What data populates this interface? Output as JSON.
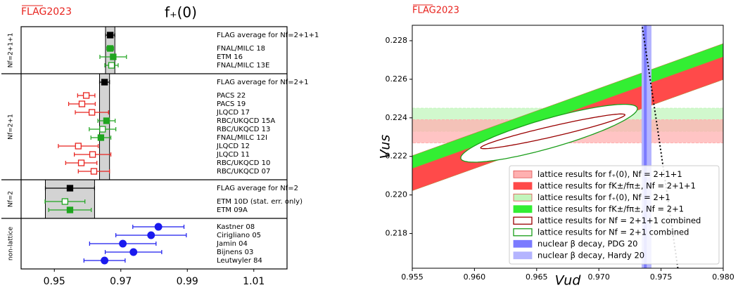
{
  "chart_data": [
    {
      "type": "forest",
      "logo": "FLAG2023",
      "title": "f₊(0)",
      "xlim": [
        0.94,
        1.02
      ],
      "xticks": [
        0.95,
        0.97,
        0.99,
        1.01
      ],
      "groups": [
        {
          "name": "Nf=2+1+1",
          "marker": "square",
          "average_band": true,
          "entries": [
            {
              "label": "FLAG average for Nf=2+1+1",
              "value": 0.9668,
              "error": 0.0014,
              "color": "#000000",
              "filled": true
            },
            {
              "label": "FNAL/MILC 18",
              "value": 0.9668,
              "error": 0.001,
              "color": "#1fa51f",
              "filled": true
            },
            {
              "label": "ETM 16",
              "value": 0.9677,
              "error": 0.004,
              "color": "#1fa51f",
              "filled": true
            },
            {
              "label": "FNAL/MILC 13E",
              "value": 0.9672,
              "error": 0.002,
              "color": "#1fa51f",
              "filled": false
            }
          ]
        },
        {
          "name": "Nf=2+1",
          "marker": "square",
          "average_band": true,
          "entries": [
            {
              "label": "FLAG average for Nf=2+1",
              "value": 0.9651,
              "error": 0.0015,
              "color": "#000000",
              "filled": true
            },
            {
              "label": "PACS 22",
              "value": 0.9596,
              "error": 0.0026,
              "color": "#e8231e",
              "filled": false
            },
            {
              "label": "PACS 19",
              "value": 0.9583,
              "error": 0.004,
              "color": "#e8231e",
              "filled": false
            },
            {
              "label": "JLQCD 17",
              "value": 0.9613,
              "error": 0.005,
              "color": "#e8231e",
              "filled": false
            },
            {
              "label": "RBC/UKQCD 15A",
              "value": 0.9657,
              "error": 0.0026,
              "color": "#1fa51f",
              "filled": true
            },
            {
              "label": "RBC/UKQCD 13",
              "value": 0.9645,
              "error": 0.004,
              "color": "#1fa51f",
              "filled": false
            },
            {
              "label": "FNAL/MILC 12I",
              "value": 0.964,
              "error": 0.003,
              "color": "#1fa51f",
              "filled": true
            },
            {
              "label": "JLQCD 12",
              "value": 0.9572,
              "error": 0.006,
              "color": "#e8231e",
              "filled": false
            },
            {
              "label": "JLQCD 11",
              "value": 0.9615,
              "error": 0.0055,
              "color": "#e8231e",
              "filled": false
            },
            {
              "label": "RBC/UKQCD 10",
              "value": 0.9581,
              "error": 0.0047,
              "color": "#e8231e",
              "filled": false
            },
            {
              "label": "RBC/UKQCD 07",
              "value": 0.9619,
              "error": 0.0047,
              "color": "#e8231e",
              "filled": false
            }
          ]
        },
        {
          "name": "Nf=2",
          "marker": "square",
          "average_band": true,
          "entries": [
            {
              "label": "FLAG average for Nf=2",
              "value": 0.9547,
              "error": 0.0074,
              "color": "#000000",
              "filled": true
            },
            {
              "label": "ETM 10D (stat. err. only)",
              "value": 0.9532,
              "error": 0.006,
              "color": "#1fa51f",
              "filled": false
            },
            {
              "label": "ETM 09A",
              "value": 0.9547,
              "error": 0.0064,
              "color": "#1fa51f",
              "filled": true
            }
          ]
        },
        {
          "name": "non-lattice",
          "marker": "circle",
          "average_band": false,
          "entries": [
            {
              "label": "Kastner 08",
              "value": 0.9813,
              "error": 0.0077,
              "color": "#1a1aee",
              "filled": true
            },
            {
              "label": "Cirigliano 05",
              "value": 0.9791,
              "error": 0.0106,
              "color": "#1a1aee",
              "filled": true
            },
            {
              "label": "Jamin 04",
              "value": 0.9706,
              "error": 0.01,
              "color": "#1a1aee",
              "filled": true
            },
            {
              "label": "Bijnens 03",
              "value": 0.9738,
              "error": 0.0085,
              "color": "#1a1aee",
              "filled": true
            },
            {
              "label": "Leutwyler 84",
              "value": 0.9651,
              "error": 0.0062,
              "color": "#1a1aee",
              "filled": true
            }
          ]
        }
      ]
    },
    {
      "type": "ckm",
      "logo": "FLAG2023",
      "x_label": "Vud",
      "y_label": "Vus",
      "xlim": [
        0.955,
        0.98
      ],
      "xticks": [
        0.955,
        {
          "value": 0.96,
          "label": "0.960"
        },
        0.965,
        {
          "value": 0.97,
          "label": "0.970"
        },
        0.975,
        {
          "value": 0.98,
          "label": "0.980"
        }
      ],
      "ylim": [
        0.2162,
        0.2288
      ],
      "yticks": [
        0.218,
        {
          "value": 0.22,
          "label": "0.220"
        },
        0.222,
        0.224,
        0.226,
        0.228
      ],
      "legend": "lower right",
      "unitarity_line": true,
      "series": [
        {
          "name": "lattice results for f₊(0), Nf = 2+1+1",
          "kind": "vus_band",
          "color": "#ffb0b0",
          "range": [
            0.2227,
            0.2239
          ]
        },
        {
          "name": "lattice results for fK±/fπ±, Nf = 2+1+1",
          "kind": "ratio_band",
          "color": "#ff4a4a",
          "range": [
            0.2306,
            0.2318
          ]
        },
        {
          "name": "lattice results for f₊(0), Nf = 2+1",
          "kind": "vus_band",
          "color": "#c2f5bc",
          "range": [
            0.2233,
            0.2245
          ]
        },
        {
          "name": "lattice results for fK±/fπ±, Nf = 2+1",
          "kind": "ratio_band",
          "color": "#33ee33",
          "range": [
            0.2306,
            0.2325
          ]
        },
        {
          "name": "lattice results for Nf = 2+1+1 combined",
          "kind": "ellipse",
          "color": "#990000",
          "center": [
            0.9663,
            0.2233
          ],
          "sigma": [
            0.0058,
            0.0009
          ],
          "rho": 0.95
        },
        {
          "name": "lattice results for Nf = 2+1 combined",
          "kind": "ellipse",
          "color": "#1a9e1a",
          "center": [
            0.966,
            0.2232
          ],
          "sigma": [
            0.0071,
            0.0015
          ],
          "rho": 0.85
        },
        {
          "name": "nuclear β decay, PDG 20",
          "kind": "vud_band",
          "color": "#7b7bff",
          "range": [
            0.97362,
            0.97385
          ]
        },
        {
          "name": "nuclear β decay, Hardy 20",
          "kind": "vud_band",
          "color": "#b4b4ff",
          "range": [
            0.97344,
            0.97423
          ]
        }
      ]
    }
  ]
}
